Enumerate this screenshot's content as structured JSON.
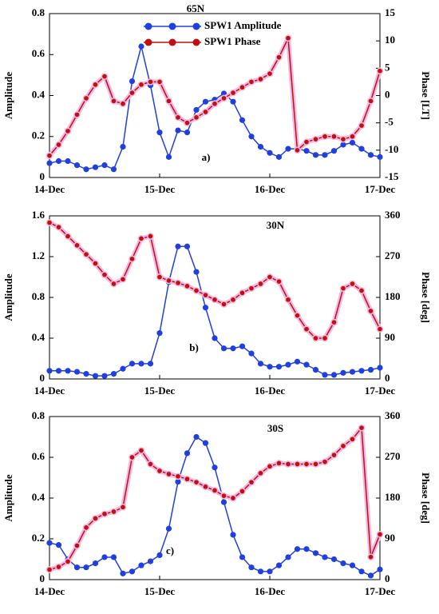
{
  "chart_data": [
    {
      "type": "line",
      "title": "65N",
      "annotation": "a)",
      "ylabel": "Amplitude",
      "y2label": "Phase [LT]",
      "legend": "top",
      "grid": false,
      "x": [
        0,
        2,
        4,
        6,
        8,
        10,
        12,
        14,
        16,
        18,
        20,
        22,
        24,
        26,
        28,
        30,
        32,
        34,
        36,
        38,
        40,
        42,
        44,
        46,
        48,
        50,
        52,
        54,
        56,
        58,
        60,
        62,
        64,
        66,
        68,
        70,
        72
      ],
      "xlim": [
        0,
        72
      ],
      "xticks": [
        {
          "value": 0,
          "label": "14-Dec"
        },
        {
          "value": 24,
          "label": "15-Dec"
        },
        {
          "value": 48,
          "label": "16-Dec"
        },
        {
          "value": 72,
          "label": "17-Dec"
        }
      ],
      "ylim": [
        0,
        0.8
      ],
      "yticks": [
        0,
        0.2,
        0.4,
        0.6,
        0.8
      ],
      "y2lim": [
        -15,
        15
      ],
      "y2ticks": [
        -15,
        -10,
        -5,
        0,
        5,
        10,
        15
      ],
      "series": [
        {
          "name": "SPW1 Amplitude",
          "color": "#1f3fe0",
          "values": [
            0.07,
            0.08,
            0.08,
            0.06,
            0.04,
            0.05,
            0.06,
            0.04,
            0.15,
            0.47,
            0.64,
            0.45,
            0.22,
            0.1,
            0.23,
            0.22,
            0.33,
            0.37,
            0.38,
            0.41,
            0.37,
            0.28,
            0.2,
            0.15,
            0.12,
            0.1,
            0.14,
            0.14,
            0.13,
            0.11,
            0.11,
            0.13,
            0.16,
            0.17,
            0.14,
            0.11,
            0.1
          ]
        },
        {
          "name": "SPW1 Phase",
          "color": "#c01010",
          "axis": "y2",
          "values": [
            -11,
            -9,
            -6.5,
            -3.5,
            -0.5,
            2,
            3.5,
            -1,
            -1.5,
            0.5,
            2,
            2.5,
            2.5,
            -1,
            -4,
            -5,
            -4,
            -3,
            -1.5,
            -0.5,
            0.5,
            1.5,
            2.5,
            3,
            4,
            7,
            10.5,
            -10,
            -8.5,
            -8,
            -7.5,
            -7.5,
            -8,
            -7.5,
            -5.5,
            -1,
            4.5
          ]
        }
      ]
    },
    {
      "type": "line",
      "title": "30N",
      "annotation": "b)",
      "ylabel": "Amplitude",
      "y2label": "Phase [deg]",
      "grid": false,
      "x": [
        0,
        2,
        4,
        6,
        8,
        10,
        12,
        14,
        16,
        18,
        20,
        22,
        24,
        26,
        28,
        30,
        32,
        34,
        36,
        38,
        40,
        42,
        44,
        46,
        48,
        50,
        52,
        54,
        56,
        58,
        60,
        62,
        64,
        66,
        68,
        70,
        72
      ],
      "xlim": [
        0,
        72
      ],
      "xticks": [
        {
          "value": 0,
          "label": "14-Dec"
        },
        {
          "value": 24,
          "label": "15-Dec"
        },
        {
          "value": 48,
          "label": "16-Dec"
        },
        {
          "value": 72,
          "label": "17-Dec"
        }
      ],
      "ylim": [
        0,
        1.6
      ],
      "yticks": [
        0,
        0.4,
        0.8,
        1.2,
        1.6
      ],
      "y2lim": [
        0,
        360
      ],
      "y2ticks": [
        0,
        90,
        180,
        270,
        360
      ],
      "series": [
        {
          "color": "#1f3fe0",
          "values": [
            0.08,
            0.08,
            0.08,
            0.07,
            0.05,
            0.03,
            0.03,
            0.05,
            0.1,
            0.15,
            0.15,
            0.15,
            0.45,
            0.95,
            1.3,
            1.3,
            1.05,
            0.7,
            0.4,
            0.3,
            0.3,
            0.32,
            0.25,
            0.15,
            0.12,
            0.12,
            0.14,
            0.17,
            0.14,
            0.09,
            0.04,
            0.04,
            0.06,
            0.07,
            0.08,
            0.09,
            0.11
          ]
        },
        {
          "color": "#c01010",
          "axis": "y2",
          "values": [
            345,
            335,
            315,
            295,
            275,
            255,
            230,
            210,
            220,
            265,
            310,
            315,
            225,
            217,
            212,
            205,
            195,
            185,
            175,
            165,
            175,
            190,
            200,
            210,
            225,
            215,
            175,
            140,
            110,
            90,
            90,
            125,
            200,
            210,
            195,
            150,
            110
          ]
        }
      ]
    },
    {
      "type": "line",
      "title": "30S",
      "annotation": "c)",
      "ylabel": "Amplitude",
      "y2label": "Phase [deg]",
      "grid": false,
      "x": [
        0,
        2,
        4,
        6,
        8,
        10,
        12,
        14,
        16,
        18,
        20,
        22,
        24,
        26,
        28,
        30,
        32,
        34,
        36,
        38,
        40,
        42,
        44,
        46,
        48,
        50,
        52,
        54,
        56,
        58,
        60,
        62,
        64,
        66,
        68,
        70,
        72
      ],
      "xlim": [
        0,
        72
      ],
      "xticks": [
        {
          "value": 0,
          "label": "14-Dec"
        },
        {
          "value": 24,
          "label": "15-Dec"
        },
        {
          "value": 48,
          "label": "16-Dec"
        },
        {
          "value": 72,
          "label": "17-Dec"
        }
      ],
      "ylim": [
        0,
        0.8
      ],
      "yticks": [
        0,
        0.2,
        0.4,
        0.6,
        0.8
      ],
      "y2lim": [
        0,
        360
      ],
      "y2ticks": [
        0,
        90,
        180,
        270,
        360
      ],
      "series": [
        {
          "color": "#1f3fe0",
          "values": [
            0.18,
            0.17,
            0.1,
            0.06,
            0.06,
            0.08,
            0.11,
            0.11,
            0.03,
            0.04,
            0.07,
            0.09,
            0.12,
            0.25,
            0.48,
            0.62,
            0.7,
            0.67,
            0.55,
            0.38,
            0.22,
            0.11,
            0.06,
            0.04,
            0.04,
            0.07,
            0.11,
            0.15,
            0.15,
            0.13,
            0.11,
            0.1,
            0.08,
            0.07,
            0.04,
            0.02,
            0.05
          ]
        },
        {
          "color": "#c01010",
          "axis": "y2",
          "values": [
            22,
            28,
            40,
            75,
            115,
            135,
            145,
            150,
            160,
            270,
            285,
            255,
            240,
            233,
            228,
            222,
            215,
            205,
            197,
            185,
            180,
            195,
            215,
            235,
            250,
            257,
            255,
            255,
            255,
            255,
            260,
            275,
            295,
            310,
            335,
            50,
            100
          ]
        }
      ]
    }
  ]
}
